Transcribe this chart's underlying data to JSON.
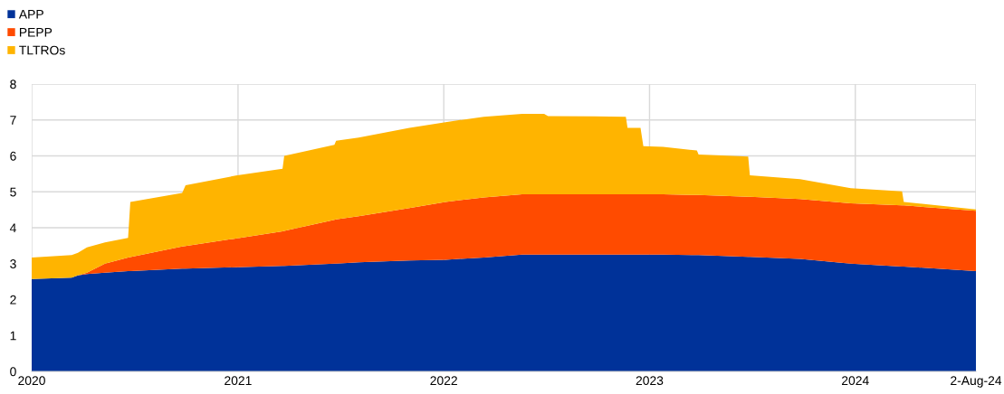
{
  "chart_data": {
    "type": "area",
    "stacked": true,
    "x": [
      "2020-01-01",
      "2020-03-12",
      "2020-03-23",
      "2020-04-08",
      "2020-05-10",
      "2020-06-20",
      "2020-06-24",
      "2020-09-24",
      "2020-09-30",
      "2020-12-28",
      "2021-03-21",
      "2021-03-24",
      "2021-06-21",
      "2021-06-24",
      "2021-08-03",
      "2021-11-01",
      "2022-01-04",
      "2022-03-13",
      "2022-05-20",
      "2022-06-28",
      "2022-07-05",
      "2022-09-25",
      "2022-11-20",
      "2022-11-23",
      "2022-12-16",
      "2022-12-21",
      "2023-01-25",
      "2023-03-26",
      "2023-03-29",
      "2023-06-25",
      "2023-06-28",
      "2023-09-25",
      "2023-12-24",
      "2024-03-24",
      "2024-03-27",
      "2024-08-02"
    ],
    "series": [
      {
        "name": "APP",
        "color": "#003299",
        "values": [
          2.57,
          2.61,
          2.67,
          2.71,
          2.75,
          2.79,
          2.79,
          2.86,
          2.86,
          2.9,
          2.94,
          2.94,
          3.0,
          3.0,
          3.04,
          3.09,
          3.11,
          3.17,
          3.25,
          3.25,
          3.25,
          3.25,
          3.25,
          3.25,
          3.25,
          3.25,
          3.25,
          3.24,
          3.24,
          3.19,
          3.19,
          3.13,
          3.0,
          2.92,
          2.92,
          2.79
        ]
      },
      {
        "name": "PEPP",
        "color": "#ff4b00",
        "values": [
          0,
          0,
          0,
          0.04,
          0.25,
          0.38,
          0.39,
          0.62,
          0.63,
          0.8,
          0.96,
          0.97,
          1.22,
          1.23,
          1.28,
          1.46,
          1.61,
          1.67,
          1.68,
          1.68,
          1.68,
          1.68,
          1.68,
          1.68,
          1.68,
          1.68,
          1.68,
          1.67,
          1.67,
          1.67,
          1.67,
          1.67,
          1.68,
          1.7,
          1.7,
          1.68
        ]
      },
      {
        "name": "TLTROs",
        "color": "#ffb400",
        "values": [
          0.6,
          0.63,
          0.63,
          0.7,
          0.59,
          0.55,
          1.54,
          1.49,
          1.69,
          1.75,
          1.74,
          2.09,
          2.09,
          2.19,
          2.19,
          2.23,
          2.22,
          2.25,
          2.24,
          2.24,
          2.18,
          2.17,
          2.16,
          1.85,
          1.85,
          1.34,
          1.32,
          1.24,
          1.13,
          1.12,
          0.6,
          0.55,
          0.42,
          0.39,
          0.1,
          0.04
        ]
      }
    ],
    "xlim": [
      "2020-01-01",
      "2024-08-02"
    ],
    "xticks": [
      {
        "value": "2020-01-01",
        "label": "2020"
      },
      {
        "value": "2021-01-01",
        "label": "2021"
      },
      {
        "value": "2022-01-01",
        "label": "2022"
      },
      {
        "value": "2023-01-01",
        "label": "2023"
      },
      {
        "value": "2024-01-01",
        "label": "2024"
      },
      {
        "value": "2024-08-02",
        "label": "2-Aug-24"
      }
    ],
    "ylim": [
      0,
      8
    ],
    "yticks": [
      0,
      1,
      2,
      3,
      4,
      5,
      6,
      7,
      8
    ],
    "grid": true,
    "legend": "top left"
  }
}
